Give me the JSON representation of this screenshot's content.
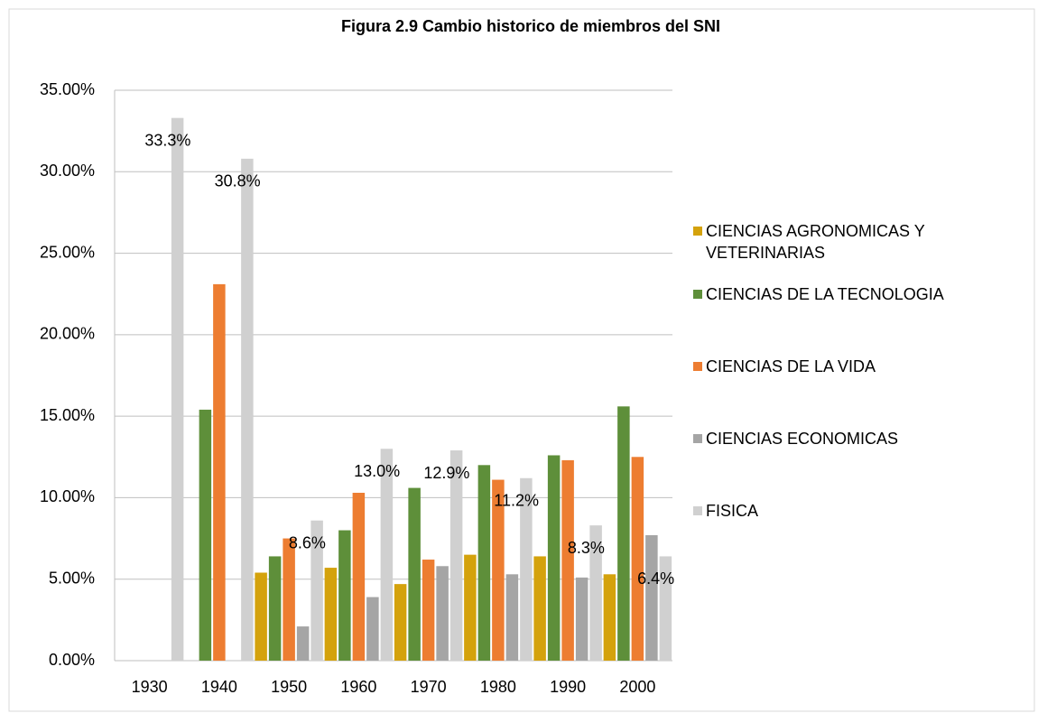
{
  "chart_data": {
    "type": "bar",
    "title": "Figura 2.9 Cambio historico de miembros del SNI",
    "categories": [
      "1930",
      "1940",
      "1950",
      "1960",
      "1970",
      "1980",
      "1990",
      "2000"
    ],
    "series": [
      {
        "name": "CIENCIAS AGRONOMICAS Y VETERINARIAS",
        "color": "#d4a20c",
        "values": [
          0,
          0,
          5.4,
          5.7,
          4.7,
          6.5,
          6.4,
          5.3
        ]
      },
      {
        "name": "CIENCIAS DE LA TECNOLOGIA",
        "color": "#5e8f3a",
        "values": [
          0,
          15.4,
          6.4,
          8.0,
          10.6,
          12.0,
          12.6,
          15.6
        ]
      },
      {
        "name": "CIENCIAS DE LA VIDA",
        "color": "#ed7d31",
        "values": [
          0,
          23.1,
          7.5,
          10.3,
          6.2,
          11.1,
          12.3,
          12.5
        ]
      },
      {
        "name": "CIENCIAS ECONOMICAS",
        "color": "#a5a5a5",
        "values": [
          0,
          0,
          2.1,
          3.9,
          5.8,
          5.3,
          5.1,
          7.7
        ]
      },
      {
        "name": "FISICA",
        "color": "#d0d0d0",
        "values": [
          33.3,
          30.8,
          8.6,
          13.0,
          12.9,
          11.2,
          8.3,
          6.4
        ],
        "value_labels": [
          "33.3%",
          "30.8%",
          "8.6%",
          "13.0%",
          "12.9%",
          "11.2%",
          "8.3%",
          "6.4%"
        ]
      }
    ],
    "ylim": [
      0,
      35
    ],
    "yticks": [
      {
        "value": 0,
        "label": "0.00%"
      },
      {
        "value": 5,
        "label": "5.00%"
      },
      {
        "value": 10,
        "label": "10.00%"
      },
      {
        "value": 15,
        "label": "15.00%"
      },
      {
        "value": 20,
        "label": "20.00%"
      },
      {
        "value": 25,
        "label": "25.00%"
      },
      {
        "value": 30,
        "label": "30.00%"
      },
      {
        "value": 35,
        "label": "35.00%"
      }
    ],
    "grid": true,
    "legend": "right"
  }
}
